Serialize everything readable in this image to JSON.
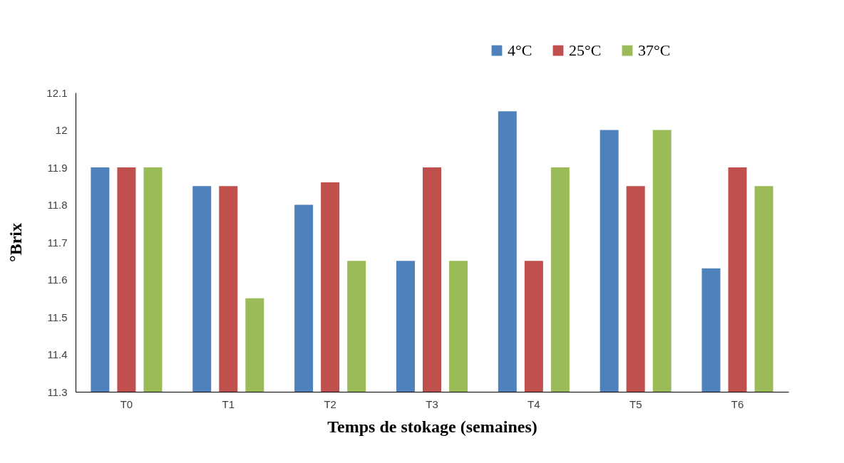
{
  "chart_data": {
    "type": "bar",
    "xlabel": "Temps de stokage (semaines)",
    "ylabel": "°Brix",
    "categories": [
      "T0",
      "T1",
      "T2",
      "T3",
      "T4",
      "T5",
      "T6"
    ],
    "series": [
      {
        "name": "4°C",
        "color": "#4f81bd",
        "values": [
          11.9,
          11.85,
          11.8,
          11.65,
          12.05,
          12.0,
          11.63
        ]
      },
      {
        "name": "25°C",
        "color": "#c0504d",
        "values": [
          11.9,
          11.85,
          11.86,
          11.9,
          11.65,
          11.85,
          11.9
        ]
      },
      {
        "name": "37°C",
        "color": "#9bbb59",
        "values": [
          11.9,
          11.55,
          11.65,
          11.65,
          11.9,
          12.0,
          11.85
        ]
      }
    ],
    "ylim": [
      11.3,
      12.1
    ],
    "yticks": [
      11.3,
      11.4,
      11.5,
      11.6,
      11.7,
      11.8,
      11.9,
      12,
      12.1
    ],
    "grid": false,
    "legend": "top right"
  }
}
